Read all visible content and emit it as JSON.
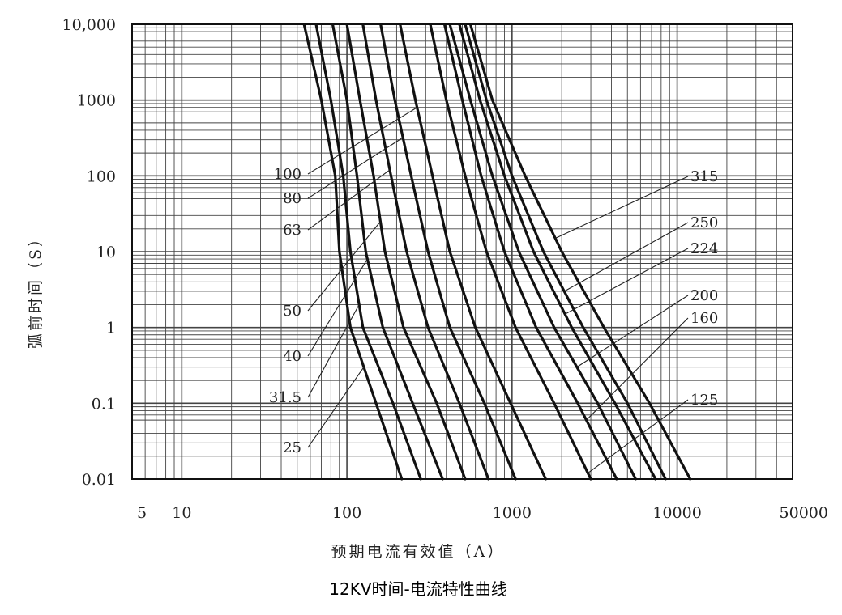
{
  "chart_data": {
    "type": "line",
    "title": "12KV时间-电流特性曲线",
    "xlabel": "预期电流有效值（A）",
    "ylabel": "弧前时间（S）",
    "x_scale": "log",
    "y_scale": "log",
    "xlim": [
      5,
      50000
    ],
    "ylim": [
      0.01,
      10000
    ],
    "x_tick_values": [
      5,
      10,
      100,
      1000,
      10000,
      50000
    ],
    "x_tick_labels": [
      "5",
      "10",
      "100",
      "1000",
      "10000",
      "50000"
    ],
    "y_tick_values": [
      0.01,
      0.1,
      1,
      10,
      100,
      1000,
      10000
    ],
    "y_tick_labels": [
      "0.01",
      "0.1",
      "1",
      "10",
      "100",
      "1000",
      "10,000"
    ],
    "grid": true,
    "series": [
      {
        "name": "25",
        "label_side": "left",
        "points": [
          [
            55,
            10000
          ],
          [
            70,
            1000
          ],
          [
            85,
            100
          ],
          [
            90,
            10
          ],
          [
            105,
            1
          ],
          [
            150,
            0.1
          ],
          [
            215,
            0.01
          ]
        ]
      },
      {
        "name": "31.5",
        "label_side": "left",
        "points": [
          [
            65,
            10000
          ],
          [
            80,
            1000
          ],
          [
            95,
            100
          ],
          [
            105,
            10
          ],
          [
            125,
            1
          ],
          [
            190,
            0.1
          ],
          [
            280,
            0.01
          ]
        ]
      },
      {
        "name": "40",
        "label_side": "left",
        "points": [
          [
            82,
            10000
          ],
          [
            100,
            1000
          ],
          [
            115,
            100
          ],
          [
            130,
            10
          ],
          [
            165,
            1
          ],
          [
            250,
            0.1
          ],
          [
            380,
            0.01
          ]
        ]
      },
      {
        "name": "50",
        "label_side": "left",
        "points": [
          [
            100,
            10000
          ],
          [
            120,
            1000
          ],
          [
            145,
            100
          ],
          [
            170,
            10
          ],
          [
            220,
            1
          ],
          [
            350,
            0.1
          ],
          [
            520,
            0.01
          ]
        ]
      },
      {
        "name": "63",
        "label_side": "left",
        "points": [
          [
            125,
            10000
          ],
          [
            150,
            1000
          ],
          [
            185,
            100
          ],
          [
            230,
            10
          ],
          [
            310,
            1
          ],
          [
            480,
            0.1
          ],
          [
            720,
            0.01
          ]
        ]
      },
      {
        "name": "80",
        "label_side": "left",
        "points": [
          [
            160,
            10000
          ],
          [
            195,
            1000
          ],
          [
            245,
            100
          ],
          [
            310,
            10
          ],
          [
            420,
            1
          ],
          [
            680,
            0.1
          ],
          [
            1050,
            0.01
          ]
        ]
      },
      {
        "name": "100",
        "label_side": "left",
        "points": [
          [
            210,
            10000
          ],
          [
            260,
            1000
          ],
          [
            330,
            100
          ],
          [
            420,
            10
          ],
          [
            600,
            1
          ],
          [
            980,
            0.1
          ],
          [
            1600,
            0.01
          ]
        ]
      },
      {
        "name": "125",
        "label_side": "right",
        "points": [
          [
            320,
            10000
          ],
          [
            400,
            1000
          ],
          [
            520,
            100
          ],
          [
            700,
            10
          ],
          [
            1050,
            1
          ],
          [
            1800,
            0.1
          ],
          [
            3000,
            0.01
          ]
        ]
      },
      {
        "name": "160",
        "label_side": "right",
        "points": [
          [
            390,
            10000
          ],
          [
            500,
            1000
          ],
          [
            650,
            100
          ],
          [
            900,
            10
          ],
          [
            1400,
            1
          ],
          [
            2500,
            0.1
          ],
          [
            4300,
            0.01
          ]
        ]
      },
      {
        "name": "200",
        "label_side": "right",
        "points": [
          [
            420,
            10000
          ],
          [
            560,
            1000
          ],
          [
            760,
            100
          ],
          [
            1100,
            10
          ],
          [
            1800,
            1
          ],
          [
            3300,
            0.1
          ],
          [
            5600,
            0.01
          ]
        ]
      },
      {
        "name": "224",
        "label_side": "right",
        "points": [
          [
            480,
            10000
          ],
          [
            640,
            1000
          ],
          [
            900,
            100
          ],
          [
            1350,
            10
          ],
          [
            2300,
            1
          ],
          [
            4200,
            0.1
          ],
          [
            7400,
            0.01
          ]
        ]
      },
      {
        "name": "250",
        "label_side": "right",
        "points": [
          [
            520,
            10000
          ],
          [
            700,
            1000
          ],
          [
            1000,
            100
          ],
          [
            1550,
            10
          ],
          [
            2700,
            1
          ],
          [
            5000,
            0.1
          ],
          [
            8500,
            0.01
          ]
        ]
      },
      {
        "name": "315",
        "label_side": "right",
        "points": [
          [
            560,
            10000
          ],
          [
            760,
            1000
          ],
          [
            1200,
            100
          ],
          [
            2000,
            10
          ],
          [
            3600,
            1
          ],
          [
            6800,
            0.1
          ],
          [
            12000,
            0.01
          ]
        ]
      }
    ]
  }
}
